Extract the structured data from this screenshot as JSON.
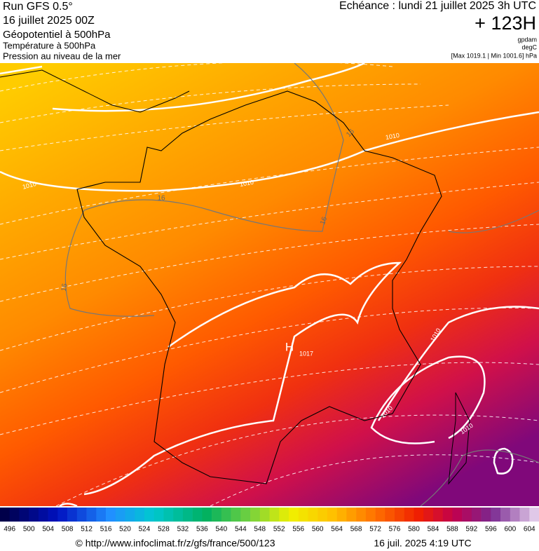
{
  "header": {
    "left": [
      "Run GFS 0.5°",
      "16 juillet 2025 00Z",
      "Géopotentiel à 500hPa",
      "Température à 500hPa",
      "Pression au niveau de la mer"
    ],
    "right": {
      "title": "Echéance : lundi 21 juillet 2025 3h UTC",
      "lead": "+ 123H",
      "units": [
        "gpdam",
        "degC"
      ],
      "range": "[Max 1019.1 | Min 1001.6] hPa"
    }
  },
  "map": {
    "labels": [
      "1010",
      "1010",
      "1010",
      "1010",
      "1010",
      "1010",
      "H",
      "1017",
      "16",
      "16",
      "16",
      "16"
    ]
  },
  "colorbar": {
    "labels": [
      496,
      500,
      504,
      508,
      512,
      516,
      520,
      524,
      528,
      532,
      536,
      540,
      544,
      548,
      552,
      556,
      560,
      564,
      568,
      572,
      576,
      580,
      584,
      588,
      592,
      596,
      600,
      604
    ]
  },
  "footer": {
    "url": "© http://www.infoclimat.fr/z/gfs/france/500/123",
    "date": "16 juil. 2025  4:19 UTC"
  }
}
